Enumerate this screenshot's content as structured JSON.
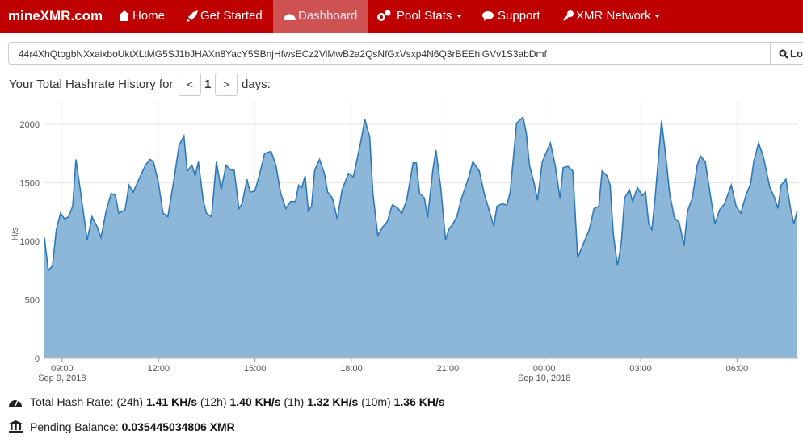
{
  "nav": {
    "brand": "mineXMR.com",
    "items": [
      "Home",
      "Get Started",
      "Dashboard",
      "Pool Stats",
      "Support",
      "XMR Network"
    ]
  },
  "lookup": {
    "address": "44r4XhQtogbNXxaixboUktXLtMG5SJ1bJHAXn8YacY5SBnjHfwsECz2ViMwB2a2QsNfGxVsxp4N6Q3rBEEhiGVv1S3abDmf",
    "button": "Lo"
  },
  "history": {
    "label": "Your Total Hashrate History for",
    "prev": "<",
    "days": "1",
    "next": ">",
    "suffix": "days:"
  },
  "chart_data": {
    "type": "area",
    "ylabel": "H/s",
    "color": "#2f78b7",
    "fill": "#8db7d8",
    "grid": true,
    "xlim": [
      8.45,
      31.9
    ],
    "ylim": [
      0,
      2200
    ],
    "xticks": [
      {
        "value": 9,
        "label": "09:00"
      },
      {
        "value": 12,
        "label": "12:00"
      },
      {
        "value": 15,
        "label": "15:00"
      },
      {
        "value": 18,
        "label": "18:00"
      },
      {
        "value": 21,
        "label": "21:00"
      },
      {
        "value": 24,
        "label": "00:00"
      },
      {
        "value": 27,
        "label": "03:00"
      },
      {
        "value": 30,
        "label": "06:00"
      }
    ],
    "xtick_dates": [
      {
        "value": 9,
        "label": "Sep 9, 2018"
      },
      {
        "value": 24,
        "label": "Sep 10, 2018"
      }
    ],
    "yticks": [
      0,
      500,
      1000,
      1500,
      2000
    ],
    "x": [
      8.45,
      8.57,
      8.7,
      8.82,
      8.95,
      9.08,
      9.2,
      9.33,
      9.43,
      9.58,
      9.78,
      9.93,
      10.08,
      10.21,
      10.38,
      10.53,
      10.66,
      10.76,
      10.96,
      11.08,
      11.21,
      11.39,
      11.59,
      11.74,
      11.84,
      11.99,
      12.14,
      12.29,
      12.47,
      12.64,
      12.79,
      12.89,
      13.04,
      13.14,
      13.24,
      13.39,
      13.49,
      13.65,
      13.8,
      13.95,
      14.1,
      14.25,
      14.35,
      14.5,
      14.6,
      14.75,
      14.85,
      15,
      15.15,
      15.3,
      15.5,
      15.65,
      15.8,
      15.96,
      16.11,
      16.26,
      16.36,
      16.46,
      16.56,
      16.66,
      16.76,
      16.86,
      17.01,
      17.16,
      17.26,
      17.41,
      17.56,
      17.71,
      17.91,
      18.06,
      18.27,
      18.42,
      18.57,
      18.67,
      18.82,
      18.97,
      19.12,
      19.27,
      19.42,
      19.57,
      19.72,
      19.92,
      20.02,
      20.12,
      20.27,
      20.37,
      20.53,
      20.63,
      20.78,
      20.93,
      21.03,
      21.18,
      21.28,
      21.43,
      21.63,
      21.78,
      21.98,
      22.13,
      22.28,
      22.43,
      22.53,
      22.69,
      22.84,
      22.94,
      23.14,
      23.34,
      23.44,
      23.54,
      23.69,
      23.79,
      23.94,
      24.19,
      24.34,
      24.49,
      24.59,
      24.74,
      24.89,
      25.04,
      25.19,
      25.4,
      25.55,
      25.7,
      25.8,
      25.95,
      26.05,
      26.15,
      26.28,
      26.4,
      26.5,
      26.65,
      26.75,
      26.9,
      27.05,
      27.15,
      27.25,
      27.35,
      27.45,
      27.65,
      27.8,
      27.9,
      28.05,
      28.2,
      28.35,
      28.46,
      28.61,
      28.76,
      28.86,
      29.01,
      29.16,
      29.31,
      29.46,
      29.61,
      29.82,
      29.97,
      30.12,
      30.27,
      30.42,
      30.52,
      30.67,
      30.82,
      31.02,
      31.17,
      31.27,
      31.37,
      31.52,
      31.67,
      31.77,
      31.87
    ],
    "values": [
      1030,
      750,
      790,
      1100,
      1240,
      1190,
      1210,
      1300,
      1700,
      1410,
      1010,
      1210,
      1130,
      1030,
      1270,
      1410,
      1390,
      1240,
      1270,
      1480,
      1420,
      1530,
      1650,
      1700,
      1680,
      1510,
      1240,
      1210,
      1510,
      1820,
      1900,
      1600,
      1650,
      1560,
      1680,
      1350,
      1240,
      1210,
      1680,
      1440,
      1650,
      1610,
      1610,
      1280,
      1320,
      1530,
      1420,
      1430,
      1580,
      1750,
      1770,
      1650,
      1410,
      1280,
      1340,
      1340,
      1480,
      1460,
      1560,
      1260,
      1300,
      1610,
      1700,
      1580,
      1420,
      1370,
      1190,
      1440,
      1580,
      1550,
      1820,
      2040,
      1890,
      1410,
      1050,
      1120,
      1170,
      1310,
      1290,
      1240,
      1350,
      1670,
      1670,
      1410,
      1370,
      1200,
      1600,
      1780,
      1460,
      1010,
      1100,
      1160,
      1210,
      1370,
      1530,
      1680,
      1600,
      1410,
      1270,
      1130,
      1300,
      1320,
      1310,
      1420,
      2010,
      2060,
      1930,
      1650,
      1490,
      1350,
      1680,
      1840,
      1650,
      1370,
      1630,
      1640,
      1600,
      860,
      960,
      1100,
      1280,
      1300,
      1600,
      1560,
      1480,
      1060,
      790,
      990,
      1370,
      1440,
      1340,
      1460,
      1390,
      1420,
      1150,
      1100,
      1370,
      2030,
      1680,
      1410,
      1200,
      1160,
      960,
      1260,
      1370,
      1650,
      1730,
      1680,
      1410,
      1150,
      1270,
      1320,
      1480,
      1300,
      1240,
      1390,
      1490,
      1680,
      1840,
      1720,
      1460,
      1370,
      1280,
      1480,
      1530,
      1270,
      1150,
      1260
    ]
  },
  "stats": {
    "hashrate_label": "Total Hash Rate:",
    "hashrate": [
      {
        "period": "(24h)",
        "value": "1.41 KH/s"
      },
      {
        "period": "(12h)",
        "value": "1.40 KH/s"
      },
      {
        "period": "(1h)",
        "value": "1.32 KH/s"
      },
      {
        "period": "(10m)",
        "value": "1.36 KH/s"
      }
    ],
    "balance_label": "Pending Balance:",
    "balance": "0.035445034806 XMR"
  }
}
